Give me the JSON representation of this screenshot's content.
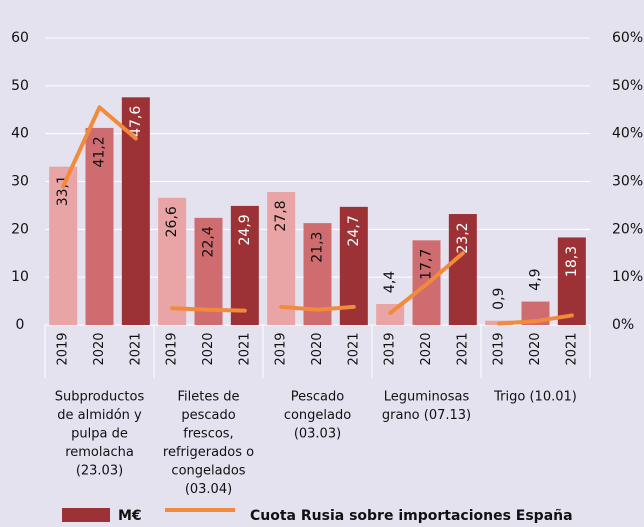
{
  "chart_data": {
    "type": "bar",
    "ylim": [
      0,
      60
    ],
    "yticks": [
      0,
      10,
      20,
      30,
      40,
      50,
      60
    ],
    "y2lim": [
      0,
      60
    ],
    "y2ticks": [
      {
        "value": 0,
        "label": "0%"
      },
      {
        "value": 10,
        "label": "10%"
      },
      {
        "value": 20,
        "label": "20%"
      },
      {
        "value": 30,
        "label": "30%"
      },
      {
        "value": 40,
        "label": "40%"
      },
      {
        "value": 50,
        "label": "50%"
      },
      {
        "value": 60,
        "label": "60%"
      }
    ],
    "grid": true,
    "year_colors": [
      "#e9a5a6",
      "#cf6c6f",
      "#9c3136"
    ],
    "series": [
      {
        "name": "M€",
        "color": "#9c3136"
      },
      {
        "name": "Cuota Rusia sobre importaciones España",
        "color": "#f28a3b",
        "axis": "y2"
      }
    ],
    "groups": [
      {
        "label": [
          "Subproductos",
          "de almidón y",
          "pulpa de",
          "remolacha",
          "(23.03)"
        ],
        "years": [
          "2019",
          "2020",
          "2021"
        ],
        "values": [
          33.1,
          41.2,
          47.6
        ],
        "value_labels": [
          "33,1",
          "41,2",
          "47,6"
        ],
        "share": [
          29,
          45.5,
          39
        ]
      },
      {
        "label": [
          "Filetes de",
          "pescado",
          "frescos,",
          "refrigerados o",
          "congelados",
          "(03.04)"
        ],
        "years": [
          "2019",
          "2020",
          "2021"
        ],
        "values": [
          26.6,
          22.4,
          24.9
        ],
        "value_labels": [
          "26,6",
          "22,4",
          "24,9"
        ],
        "share": [
          3.5,
          3.2,
          3
        ]
      },
      {
        "label": [
          "Pescado",
          "congelado",
          "(03.03)"
        ],
        "years": [
          "2019",
          "2020",
          "2021"
        ],
        "values": [
          27.8,
          21.3,
          24.7
        ],
        "value_labels": [
          "27,8",
          "21,3",
          "24,7"
        ],
        "share": [
          3.8,
          3.2,
          3.8
        ]
      },
      {
        "label": [
          "Leguminosas",
          "grano (07.13)"
        ],
        "years": [
          "2019",
          "2020",
          "2021"
        ],
        "values": [
          4.4,
          17.7,
          23.2
        ],
        "value_labels": [
          "4,4",
          "17,7",
          "23,2"
        ],
        "share": [
          2.5,
          8.5,
          15
        ]
      },
      {
        "label": [
          "Trigo (10.01)"
        ],
        "years": [
          "2019",
          "2020",
          "2021"
        ],
        "values": [
          0.9,
          4.9,
          18.3
        ],
        "value_labels": [
          "0,9",
          "4,9",
          "18,3"
        ],
        "share": [
          0.3,
          0.8,
          2
        ]
      }
    ]
  }
}
